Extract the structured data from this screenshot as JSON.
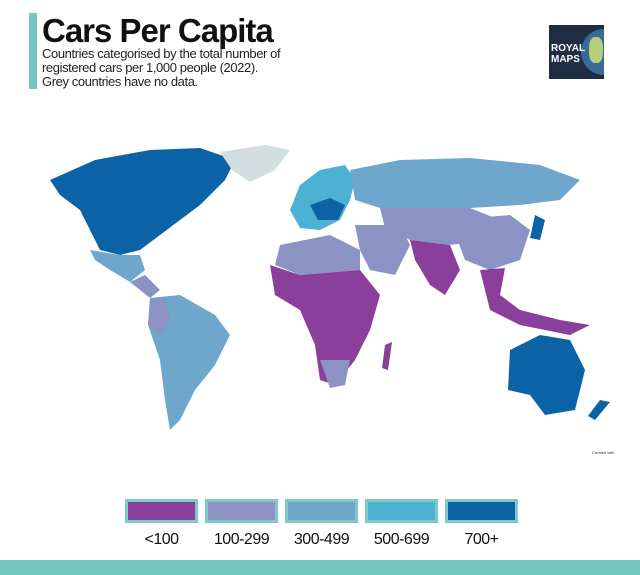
{
  "header": {
    "title": "Cars Per Capita",
    "subtitle": "Countries categorised by the total number of registered cars per 1,000 people (2022). Grey countries have no data."
  },
  "logo": {
    "text": "ROYAL MAPS"
  },
  "credit": "Created with",
  "legend": [
    {
      "label": "<100",
      "color": "#8a3f9b"
    },
    {
      "label": "100-299",
      "color": "#8a93c4"
    },
    {
      "label": "300-499",
      "color": "#6fa6cb"
    },
    {
      "label": "500-699",
      "color": "#4db1d3"
    },
    {
      "label": "700+",
      "color": "#0b63a5"
    }
  ],
  "colors": {
    "nodata": "#d3dee0",
    "accent": "#72c8bd"
  }
}
